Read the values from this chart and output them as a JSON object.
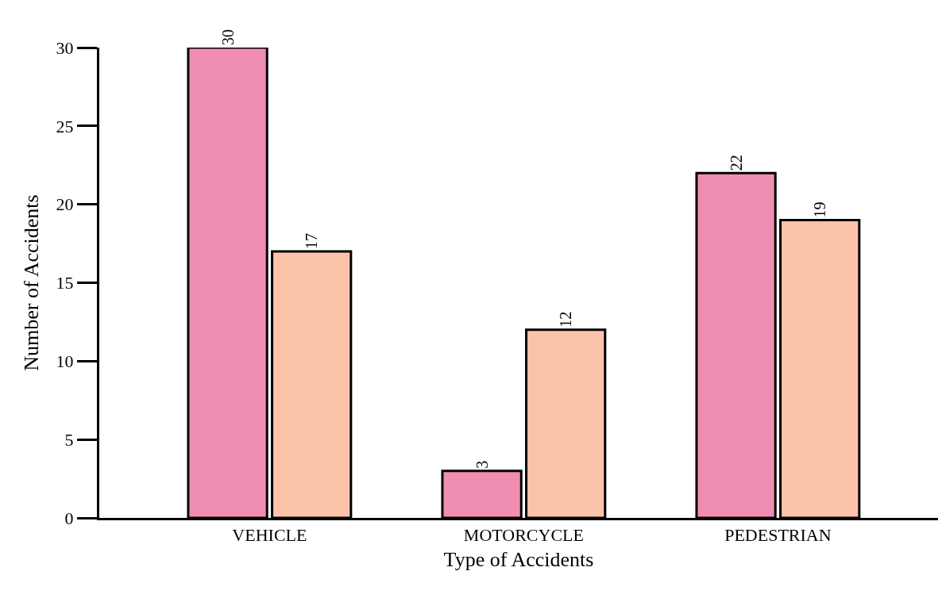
{
  "chart_data": {
    "type": "bar",
    "xlabel": "Type of Accidents",
    "ylabel": "Number of Accidents",
    "categories": [
      "VEHICLE",
      "MOTORCYCLE",
      "PEDESTRIAN"
    ],
    "series": [
      {
        "color": "#f08db2",
        "values": [
          30,
          3,
          22
        ]
      },
      {
        "color": "#fbc3aa",
        "values": [
          17,
          12,
          19
        ]
      }
    ],
    "ylim": [
      0,
      30
    ],
    "yticks": [
      0,
      5,
      10,
      15,
      20,
      25,
      30
    ],
    "data_labels": true
  }
}
